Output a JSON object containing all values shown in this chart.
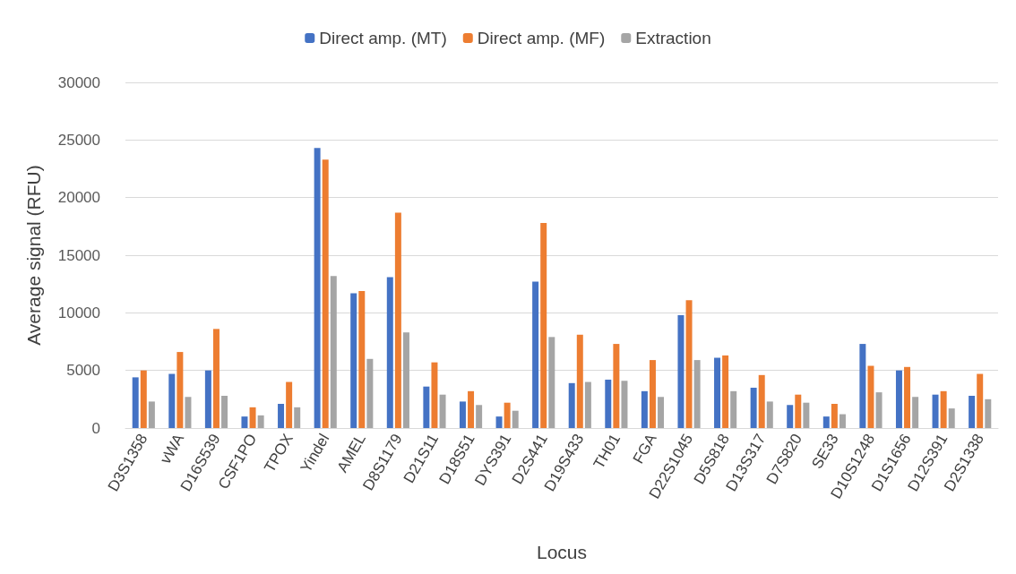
{
  "chart_data": {
    "type": "bar",
    "xlabel": "Locus",
    "ylabel": "Average signal (RFU)",
    "categories": [
      "D3S1358",
      "vWA",
      "D16S539",
      "CSF1PO",
      "TPOX",
      "Yindel",
      "AMEL",
      "D8S1179",
      "D21S11",
      "D18S51",
      "DYS391",
      "D2S441",
      "D19S433",
      "TH01",
      "FGA",
      "D22S1045",
      "D5S818",
      "D13S317",
      "D7S820",
      "SE33",
      "D10S1248",
      "D1S1656",
      "D12S391",
      "D2S1338"
    ],
    "series": [
      {
        "name": "Direct amp. (MT)",
        "color": "#4472c4",
        "values": [
          4400,
          4700,
          5000,
          1000,
          2100,
          24300,
          11700,
          13100,
          3600,
          2300,
          1000,
          12700,
          3900,
          4200,
          3200,
          9800,
          6100,
          3500,
          2000,
          1000,
          7300,
          5000,
          2900,
          2800
        ]
      },
      {
        "name": "Direct amp. (MF)",
        "color": "#ed7d31",
        "values": [
          5000,
          6600,
          8600,
          1800,
          4000,
          23300,
          11900,
          18700,
          5700,
          3200,
          2200,
          17800,
          8100,
          7300,
          5900,
          11100,
          6300,
          4600,
          2900,
          2100,
          5400,
          5300,
          3200,
          4700
        ]
      },
      {
        "name": "Extraction",
        "color": "#a5a5a5",
        "values": [
          2300,
          2700,
          2800,
          1100,
          1800,
          13200,
          6000,
          8300,
          2900,
          2000,
          1500,
          7900,
          4000,
          4100,
          2700,
          5900,
          3200,
          2300,
          2200,
          1200,
          3100,
          2700,
          1700,
          2500
        ]
      }
    ],
    "ylim": [
      0,
      30000
    ],
    "yticks": [
      0,
      5000,
      10000,
      15000,
      20000,
      25000,
      30000
    ],
    "grid": "y",
    "legend": "top"
  }
}
